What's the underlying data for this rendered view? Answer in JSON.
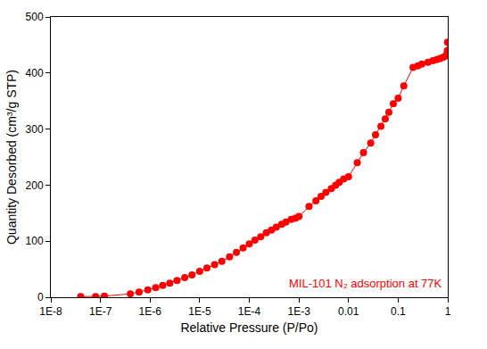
{
  "chart_data": {
    "type": "scatter",
    "x_label": "Relative Pressure (P/Po)",
    "y_label": "Quantity Desorbed (cm³/g STP)",
    "annotation": "MIL-101 N₂ adsorption at 77K",
    "log": "x",
    "grid": false,
    "color": "#ff0000",
    "marker": "circle",
    "line_style": "solid",
    "x": [
      4e-08,
      8e-08,
      1.2e-07,
      4e-07,
      6e-07,
      9e-07,
      1.3e-06,
      1.8e-06,
      2.5e-06,
      3.5e-06,
      5e-06,
      7e-06,
      1e-05,
      1.4e-05,
      2e-05,
      2.8e-05,
      4e-05,
      5.5e-05,
      7.5e-05,
      0.0001,
      0.00013,
      0.00017,
      0.00022,
      0.00028,
      0.00035,
      0.00045,
      0.00055,
      0.0007,
      0.00085,
      0.001,
      0.0016,
      0.0022,
      0.0028,
      0.0035,
      0.0045,
      0.0055,
      0.0065,
      0.008,
      0.01,
      0.015,
      0.02,
      0.028,
      0.035,
      0.045,
      0.055,
      0.065,
      0.08,
      0.1,
      0.13,
      0.2,
      0.25,
      0.3,
      0.4,
      0.5,
      0.6,
      0.7,
      0.8,
      0.9,
      0.95,
      0.98,
      0.99
    ],
    "values": [
      1,
      1,
      2,
      6,
      9,
      13,
      17,
      21,
      25,
      30,
      35,
      40,
      46,
      52,
      58,
      64,
      72,
      80,
      88,
      95,
      102,
      108,
      115,
      120,
      125,
      130,
      134,
      139,
      141,
      144,
      162,
      172,
      180,
      187,
      194,
      200,
      205,
      211,
      215,
      240,
      258,
      275,
      290,
      305,
      318,
      330,
      345,
      355,
      377,
      410,
      413,
      416,
      419,
      422,
      424,
      426,
      428,
      430,
      433,
      440,
      455
    ],
    "xlim": [
      1e-08,
      1
    ],
    "xticks": [
      {
        "value": 1e-08,
        "label": "1E-8"
      },
      {
        "value": 1e-07,
        "label": "1E-7"
      },
      {
        "value": 1e-06,
        "label": "1E-6"
      },
      {
        "value": 1e-05,
        "label": "1E-5"
      },
      {
        "value": 0.0001,
        "label": "1E-4"
      },
      {
        "value": 0.001,
        "label": "1E-3"
      },
      0.01,
      0.1,
      1
    ],
    "ylim": [
      0,
      500
    ],
    "yticks": [
      0,
      100,
      200,
      300,
      400,
      500
    ]
  }
}
